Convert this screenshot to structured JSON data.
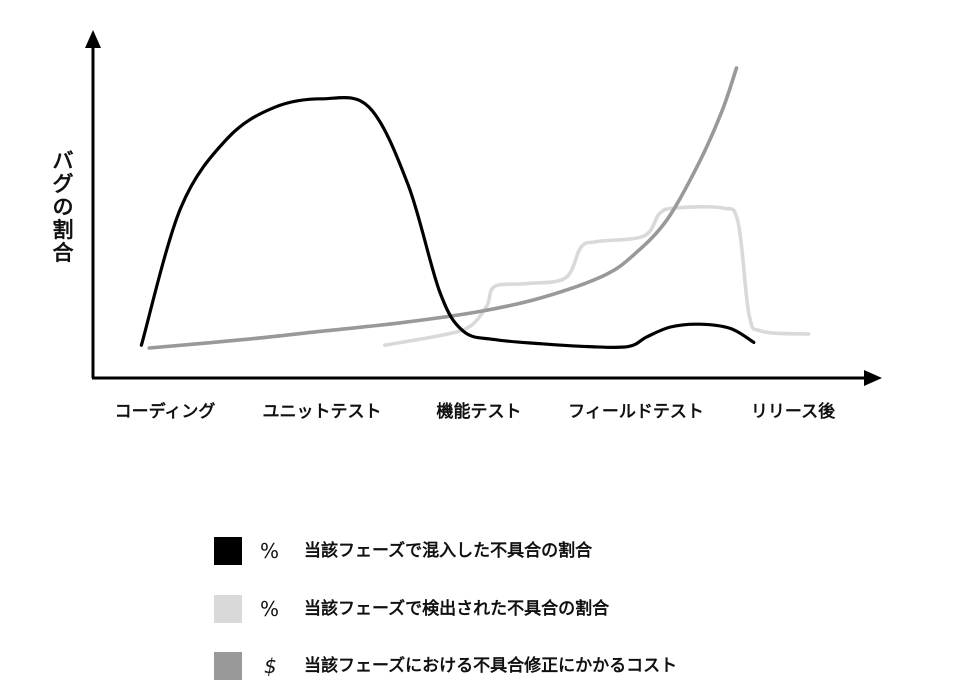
{
  "chart_data": {
    "type": "line",
    "title": "",
    "xlabel": "",
    "ylabel": "バグの割合",
    "categories": [
      "コーディング",
      "ユニットテスト",
      "機能テスト",
      "フィールドテスト",
      "リリース後"
    ],
    "x_range": [
      0,
      4
    ],
    "ylim": [
      0,
      100
    ],
    "grid": false,
    "legend_position": "bottom",
    "series": [
      {
        "name": "当該フェーズで混入した不具合の割合",
        "symbol": "%",
        "color": "#000000",
        "x": [
          -0.15,
          0.1,
          0.4,
          0.7,
          1.0,
          1.3,
          1.55,
          1.75,
          1.9,
          2.1,
          2.4,
          2.7,
          2.95,
          3.07,
          3.22,
          3.4,
          3.6,
          3.75
        ],
        "y": [
          1,
          50,
          75,
          86,
          89,
          86,
          58,
          20,
          6,
          3,
          1.5,
          0.5,
          0.5,
          4,
          7.5,
          8.5,
          7,
          2
        ]
      },
      {
        "name": "当該フェーズで検出された不具合の割合",
        "symbol": "%",
        "color": "#d9d9d9",
        "x": [
          1.4,
          1.8,
          1.95,
          2.05,
          2.1,
          2.3,
          2.55,
          2.65,
          2.75,
          3.05,
          3.15,
          3.25,
          3.55,
          3.65,
          3.72,
          3.8,
          4.1
        ],
        "y": [
          1,
          5,
          8,
          15,
          22,
          23,
          25,
          36,
          38,
          40,
          48,
          50,
          50,
          45,
          12,
          6,
          5
        ]
      },
      {
        "name": "当該フェーズにおける不具合修正にかかるコスト",
        "symbol": "$",
        "color": "#999999",
        "x": [
          -0.1,
          0.5,
          1.0,
          1.5,
          2.0,
          2.4,
          2.8,
          3.0,
          3.2,
          3.4,
          3.55,
          3.64
        ],
        "y": [
          0,
          3,
          6,
          9,
          13,
          18,
          26,
          34,
          46,
          66,
          85,
          100
        ]
      }
    ]
  }
}
